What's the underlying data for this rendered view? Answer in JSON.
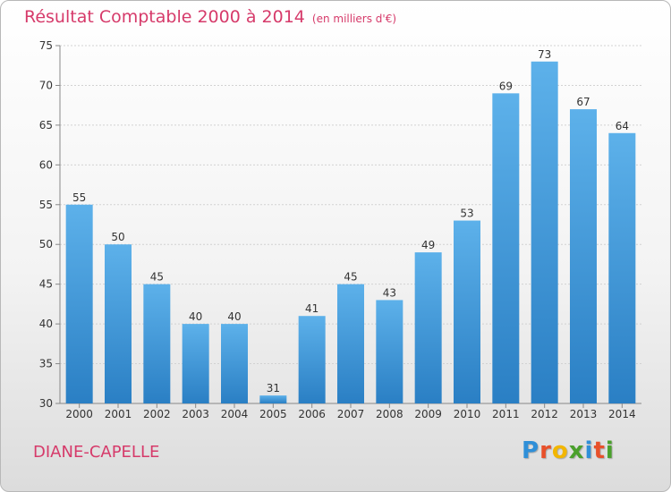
{
  "title": "Résultat Comptable 2000 à 2014",
  "subtitle": "(en milliers d'€)",
  "location": "DIANE-CAPELLE",
  "brand": {
    "text": "Proxiti",
    "letter_colors": [
      "#2f8fd8",
      "#e8502a",
      "#f2b600",
      "#4aa02c",
      "#2f8fd8",
      "#e8502a",
      "#4aa02c"
    ]
  },
  "colors": {
    "title": "#d63a6a",
    "bar_top": "#5db1ea",
    "bar_bottom": "#2a7fc4"
  },
  "chart_data": {
    "type": "bar",
    "categories": [
      "2000",
      "2001",
      "2002",
      "2003",
      "2004",
      "2005",
      "2006",
      "2007",
      "2008",
      "2009",
      "2010",
      "2011",
      "2012",
      "2013",
      "2014"
    ],
    "values": [
      55,
      50,
      45,
      40,
      40,
      31,
      41,
      45,
      43,
      49,
      53,
      69,
      73,
      67,
      64
    ],
    "ylim": [
      30,
      75
    ],
    "yticks": [
      30,
      35,
      40,
      45,
      50,
      55,
      60,
      65,
      70,
      75
    ],
    "grid": true,
    "legend": "none"
  }
}
